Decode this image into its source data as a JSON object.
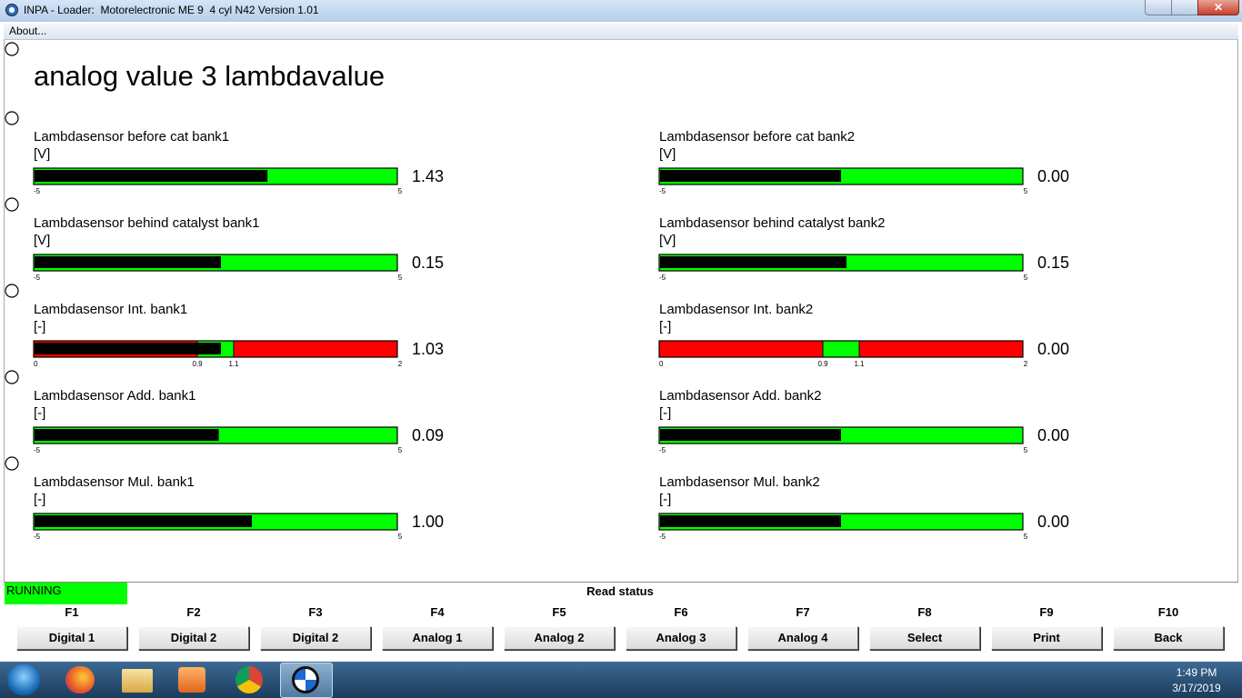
{
  "window": {
    "title": "INPA - Loader:  Motorelectronic ME 9  4 cyl N42 Version 1.01",
    "menu": [
      "About..."
    ]
  },
  "screen": {
    "title": "analog value 3 lambdavalue",
    "gauges": [
      {
        "label": "Lambdasensor before cat bank1",
        "unit": "[V]",
        "value": 1.43,
        "value_label": "1.43",
        "range": [
          -5,
          5
        ],
        "ticks": [
          -5,
          5
        ]
      },
      {
        "label": "Lambdasensor before cat bank2",
        "unit": "[V]",
        "value": 0,
        "value_label": "0.00",
        "range": [
          -5,
          5
        ],
        "ticks": [
          -5,
          5
        ]
      },
      {
        "label": "Lambdasensor behind catalyst bank1",
        "unit": "[V]",
        "value": 0.15,
        "value_label": "0.15",
        "range": [
          -5,
          5
        ],
        "ticks": [
          -5,
          5
        ]
      },
      {
        "label": "Lambdasensor behind catalyst bank2",
        "unit": "[V]",
        "value": 0.15,
        "value_label": "0.15",
        "range": [
          -5,
          5
        ],
        "ticks": [
          -5,
          5
        ]
      },
      {
        "label": "Lambdasensor Int. bank1",
        "unit": "[-]",
        "value": 1.03,
        "value_label": "1.03",
        "range": [
          0,
          2
        ],
        "ticks": [
          0,
          0.9,
          1.1,
          2
        ],
        "zone": [
          0.9,
          1.1
        ]
      },
      {
        "label": "Lambdasensor Int. bank2",
        "unit": "[-]",
        "value": 0,
        "value_label": "0.00",
        "range": [
          0,
          2
        ],
        "ticks": [
          0,
          0.9,
          1.1,
          2
        ],
        "zone": [
          0.9,
          1.1
        ]
      },
      {
        "label": "Lambdasensor Add. bank1",
        "unit": "[-]",
        "value": 0.09,
        "value_label": "0.09",
        "range": [
          -5,
          5
        ],
        "ticks": [
          -5,
          5
        ]
      },
      {
        "label": "Lambdasensor Add. bank2",
        "unit": "[-]",
        "value": 0,
        "value_label": "0.00",
        "range": [
          -5,
          5
        ],
        "ticks": [
          -5,
          5
        ]
      },
      {
        "label": "Lambdasensor Mul. bank1",
        "unit": "[-]",
        "value": 1,
        "value_label": "1.00",
        "range": [
          -5,
          5
        ],
        "ticks": [
          -5,
          5
        ]
      },
      {
        "label": "Lambdasensor Mul. bank2",
        "unit": "[-]",
        "value": 0,
        "value_label": "0.00",
        "range": [
          -5,
          5
        ],
        "ticks": [
          -5,
          5
        ]
      }
    ]
  },
  "status": {
    "state": "RUNNING",
    "message": "Read status"
  },
  "function_keys": [
    {
      "key": "F1",
      "label": "Digital 1"
    },
    {
      "key": "F2",
      "label": "Digital 2"
    },
    {
      "key": "F3",
      "label": "Digital 2"
    },
    {
      "key": "F4",
      "label": "Analog 1"
    },
    {
      "key": "F5",
      "label": "Analog 2"
    },
    {
      "key": "F6",
      "label": "Analog 3"
    },
    {
      "key": "F7",
      "label": "Analog 4"
    },
    {
      "key": "F8",
      "label": "Select"
    },
    {
      "key": "F9",
      "label": "Print"
    },
    {
      "key": "F10",
      "label": "Back"
    }
  ],
  "taskbar": {
    "time": "1:49 PM",
    "date": "3/17/2019"
  }
}
